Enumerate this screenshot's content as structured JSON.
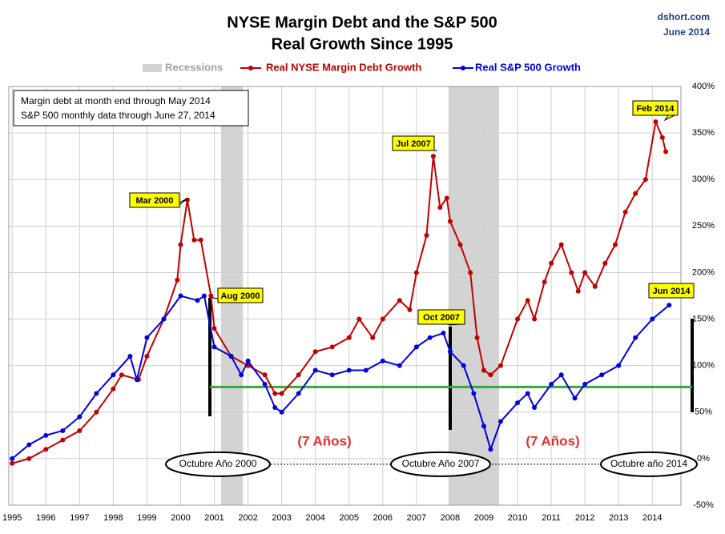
{
  "chart_data": {
    "type": "line",
    "title": "NYSE Margin Debt and the S&P 500",
    "subtitle": "Real Growth Since 1995",
    "source": "dshort.com",
    "date": "June 2014",
    "recession_label": "Recessions",
    "recession_color": "#d3d3d3",
    "recessions": [
      [
        2001.2,
        2001.85
      ],
      [
        2007.95,
        2009.45
      ]
    ],
    "note": [
      "Margin debt at month end through May 2014",
      "S&P 500 monthly data through June 27, 2014"
    ],
    "xlim": [
      1994.9,
      2014.85
    ],
    "xticks": [
      1995,
      1996,
      1997,
      1998,
      1999,
      2000,
      2001,
      2002,
      2003,
      2004,
      2005,
      2006,
      2007,
      2008,
      2009,
      2010,
      2011,
      2012,
      2013,
      2014
    ],
    "ylim": [
      -50,
      400
    ],
    "yticks": [
      {
        "value": -50,
        "label": "-50%"
      },
      {
        "value": 0,
        "label": "0%"
      },
      {
        "value": 50,
        "label": "50%"
      },
      {
        "value": 100,
        "label": "100%"
      },
      {
        "value": 150,
        "label": "150%"
      },
      {
        "value": 200,
        "label": "200%"
      },
      {
        "value": 250,
        "label": "250%"
      },
      {
        "value": 300,
        "label": "300%"
      },
      {
        "value": 350,
        "label": "350%"
      },
      {
        "value": 400,
        "label": "400%"
      }
    ],
    "grid": true,
    "reference_line": {
      "value": 77,
      "color": "#3aa63a"
    },
    "series": [
      {
        "name": "Real NYSE Margin Debt Growth",
        "color": "#c00000",
        "x": [
          1995.0,
          1995.5,
          1996.0,
          1996.5,
          1997.0,
          1997.5,
          1998.0,
          1998.25,
          1998.75,
          1999.0,
          1999.5,
          1999.9,
          2000.0,
          2000.2,
          2000.4,
          2000.6,
          2000.9,
          2001.0,
          2001.5,
          2002.0,
          2002.5,
          2002.8,
          2003.0,
          2003.5,
          2004.0,
          2004.5,
          2005.0,
          2005.3,
          2005.7,
          2006.0,
          2006.5,
          2006.8,
          2007.0,
          2007.3,
          2007.5,
          2007.7,
          2007.9,
          2008.0,
          2008.3,
          2008.6,
          2008.8,
          2009.0,
          2009.2,
          2009.5,
          2010.0,
          2010.3,
          2010.5,
          2010.8,
          2011.0,
          2011.3,
          2011.6,
          2011.8,
          2012.0,
          2012.3,
          2012.6,
          2012.9,
          2013.2,
          2013.5,
          2013.8,
          2014.1,
          2014.3,
          2014.4
        ],
        "values": [
          -5,
          0,
          10,
          20,
          30,
          50,
          75,
          90,
          85,
          110,
          150,
          192,
          230,
          278,
          235,
          235,
          175,
          140,
          110,
          100,
          90,
          70,
          70,
          90,
          115,
          120,
          130,
          150,
          130,
          150,
          170,
          160,
          200,
          240,
          325,
          270,
          280,
          255,
          230,
          200,
          130,
          95,
          90,
          100,
          150,
          170,
          150,
          190,
          210,
          230,
          200,
          180,
          200,
          185,
          210,
          230,
          265,
          285,
          300,
          362,
          345,
          330
        ]
      },
      {
        "name": "Real S&P 500 Growth",
        "color": "#0000e0",
        "x": [
          1995.0,
          1995.5,
          1996.0,
          1996.5,
          1997.0,
          1997.5,
          1998.0,
          1998.5,
          1998.7,
          1999.0,
          1999.5,
          2000.0,
          2000.5,
          2000.7,
          2001.0,
          2001.5,
          2001.8,
          2002.0,
          2002.5,
          2002.8,
          2003.0,
          2003.5,
          2004.0,
          2004.5,
          2005.0,
          2005.5,
          2006.0,
          2006.5,
          2007.0,
          2007.4,
          2007.8,
          2008.0,
          2008.4,
          2008.7,
          2009.0,
          2009.2,
          2009.5,
          2010.0,
          2010.3,
          2010.5,
          2011.0,
          2011.3,
          2011.7,
          2012.0,
          2012.5,
          2013.0,
          2013.5,
          2014.0,
          2014.5
        ],
        "values": [
          0,
          15,
          25,
          30,
          45,
          70,
          90,
          110,
          85,
          130,
          150,
          175,
          170,
          175,
          120,
          110,
          90,
          105,
          80,
          55,
          50,
          70,
          95,
          90,
          95,
          95,
          105,
          100,
          120,
          130,
          135,
          115,
          100,
          70,
          35,
          10,
          40,
          60,
          70,
          55,
          80,
          90,
          65,
          80,
          90,
          100,
          130,
          150,
          165
        ]
      }
    ],
    "callouts": [
      "Mar 2000",
      "Aug 2000",
      "Jul 2007",
      "Oct 2007",
      "Feb 2014",
      "Jun 2014"
    ],
    "period_labels": [
      "(7 Años)",
      "(7 Años)"
    ],
    "ellipse_labels": [
      "Octubre Año 2000",
      "Octubre Año 2007",
      "Octubre año 2014"
    ]
  }
}
